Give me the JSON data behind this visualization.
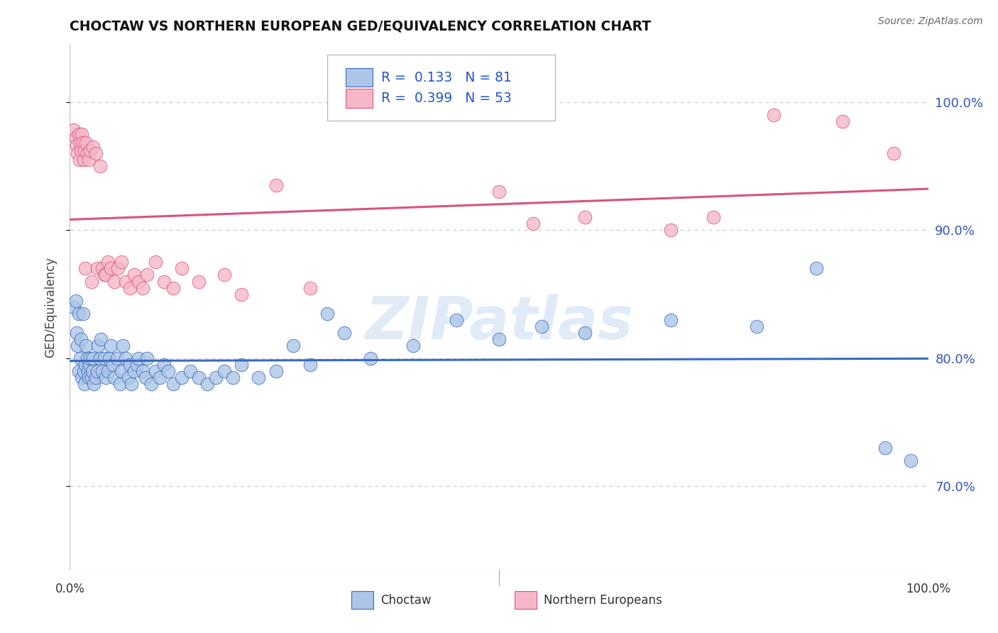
{
  "title": "CHOCTAW VS NORTHERN EUROPEAN GED/EQUIVALENCY CORRELATION CHART",
  "source": "Source: ZipAtlas.com",
  "ylabel": "GED/Equivalency",
  "legend_label1": "Choctaw",
  "legend_label2": "Northern Europeans",
  "R1": 0.133,
  "N1": 81,
  "R2": 0.399,
  "N2": 53,
  "color_blue": "#adc6e8",
  "color_pink": "#f5b8c8",
  "line_blue": "#3a6abf",
  "line_pink": "#d9547a",
  "background_color": "#ffffff",
  "grid_color": "#cccccc",
  "watermark": "ZIPatlas",
  "ytick_labels": [
    "70.0%",
    "80.0%",
    "90.0%",
    "100.0%"
  ],
  "ytick_values": [
    0.7,
    0.8,
    0.9,
    1.0
  ],
  "xlim": [
    0.0,
    1.0
  ],
  "ylim": [
    0.635,
    1.045
  ],
  "blue_x": [
    0.005,
    0.007,
    0.008,
    0.009,
    0.01,
    0.01,
    0.012,
    0.013,
    0.014,
    0.015,
    0.016,
    0.017,
    0.018,
    0.019,
    0.02,
    0.021,
    0.022,
    0.023,
    0.024,
    0.025,
    0.026,
    0.027,
    0.028,
    0.03,
    0.032,
    0.033,
    0.035,
    0.036,
    0.038,
    0.04,
    0.042,
    0.044,
    0.046,
    0.048,
    0.05,
    0.052,
    0.055,
    0.058,
    0.06,
    0.062,
    0.065,
    0.068,
    0.07,
    0.072,
    0.075,
    0.078,
    0.08,
    0.085,
    0.088,
    0.09,
    0.095,
    0.1,
    0.105,
    0.11,
    0.115,
    0.12,
    0.13,
    0.14,
    0.15,
    0.16,
    0.17,
    0.18,
    0.19,
    0.2,
    0.22,
    0.24,
    0.26,
    0.28,
    0.3,
    0.32,
    0.35,
    0.4,
    0.45,
    0.5,
    0.55,
    0.6,
    0.7,
    0.8,
    0.87,
    0.95,
    0.98
  ],
  "blue_y": [
    0.84,
    0.845,
    0.82,
    0.81,
    0.835,
    0.79,
    0.8,
    0.815,
    0.785,
    0.835,
    0.79,
    0.78,
    0.795,
    0.81,
    0.8,
    0.79,
    0.785,
    0.795,
    0.8,
    0.785,
    0.79,
    0.8,
    0.78,
    0.785,
    0.79,
    0.81,
    0.8,
    0.815,
    0.79,
    0.8,
    0.785,
    0.79,
    0.8,
    0.81,
    0.795,
    0.785,
    0.8,
    0.78,
    0.79,
    0.81,
    0.8,
    0.785,
    0.795,
    0.78,
    0.79,
    0.795,
    0.8,
    0.79,
    0.785,
    0.8,
    0.78,
    0.79,
    0.785,
    0.795,
    0.79,
    0.78,
    0.785,
    0.79,
    0.785,
    0.78,
    0.785,
    0.79,
    0.785,
    0.795,
    0.785,
    0.79,
    0.81,
    0.795,
    0.835,
    0.82,
    0.8,
    0.81,
    0.83,
    0.815,
    0.825,
    0.82,
    0.83,
    0.825,
    0.87,
    0.73,
    0.72
  ],
  "pink_x": [
    0.005,
    0.007,
    0.008,
    0.009,
    0.01,
    0.011,
    0.012,
    0.013,
    0.014,
    0.015,
    0.016,
    0.017,
    0.018,
    0.019,
    0.02,
    0.022,
    0.024,
    0.025,
    0.027,
    0.03,
    0.032,
    0.035,
    0.038,
    0.04,
    0.042,
    0.044,
    0.048,
    0.052,
    0.056,
    0.06,
    0.065,
    0.07,
    0.075,
    0.08,
    0.085,
    0.09,
    0.1,
    0.11,
    0.12,
    0.13,
    0.15,
    0.18,
    0.2,
    0.24,
    0.28,
    0.5,
    0.54,
    0.6,
    0.7,
    0.75,
    0.82,
    0.9,
    0.96
  ],
  "pink_y": [
    0.978,
    0.972,
    0.966,
    0.96,
    0.975,
    0.955,
    0.968,
    0.962,
    0.975,
    0.968,
    0.955,
    0.962,
    0.87,
    0.968,
    0.96,
    0.955,
    0.962,
    0.86,
    0.965,
    0.96,
    0.87,
    0.95,
    0.87,
    0.865,
    0.865,
    0.875,
    0.87,
    0.86,
    0.87,
    0.875,
    0.86,
    0.855,
    0.865,
    0.86,
    0.855,
    0.865,
    0.875,
    0.86,
    0.855,
    0.87,
    0.86,
    0.865,
    0.85,
    0.935,
    0.855,
    0.93,
    0.905,
    0.91,
    0.9,
    0.91,
    0.99,
    0.985,
    0.96
  ]
}
